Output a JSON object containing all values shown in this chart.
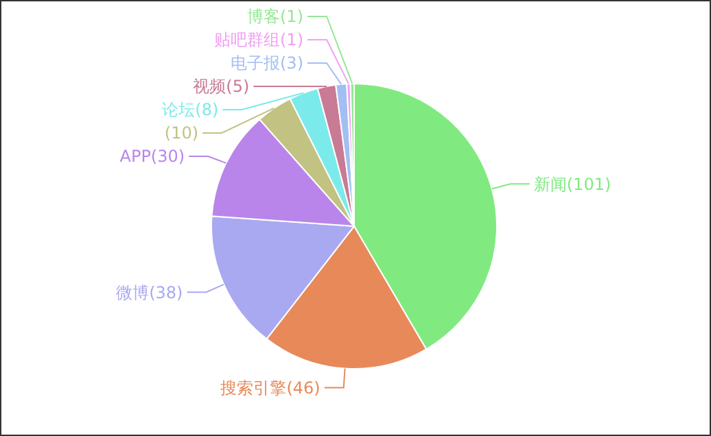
{
  "chart_data": {
    "type": "pie",
    "categories": [
      "新闻",
      "搜索引擎",
      "微博",
      "APP",
      null,
      "论坛",
      "视频",
      "电子报",
      "贴吧群组",
      "博客"
    ],
    "values": [
      101,
      46,
      38,
      30,
      10,
      8,
      5,
      3,
      1,
      1
    ],
    "value_labels": [
      "(101)",
      "(46)",
      "(38)",
      "(30)",
      "(10)",
      "(8)",
      "(5)",
      "(3)",
      "(1)",
      "(1)"
    ],
    "colors": [
      "#80ea80",
      "#e8895a",
      "#a9a9f2",
      "#b985ea",
      "#c2c282",
      "#7beaea",
      "#c97a94",
      "#a3bff2",
      "#f2a0f2",
      "#94e894"
    ]
  }
}
